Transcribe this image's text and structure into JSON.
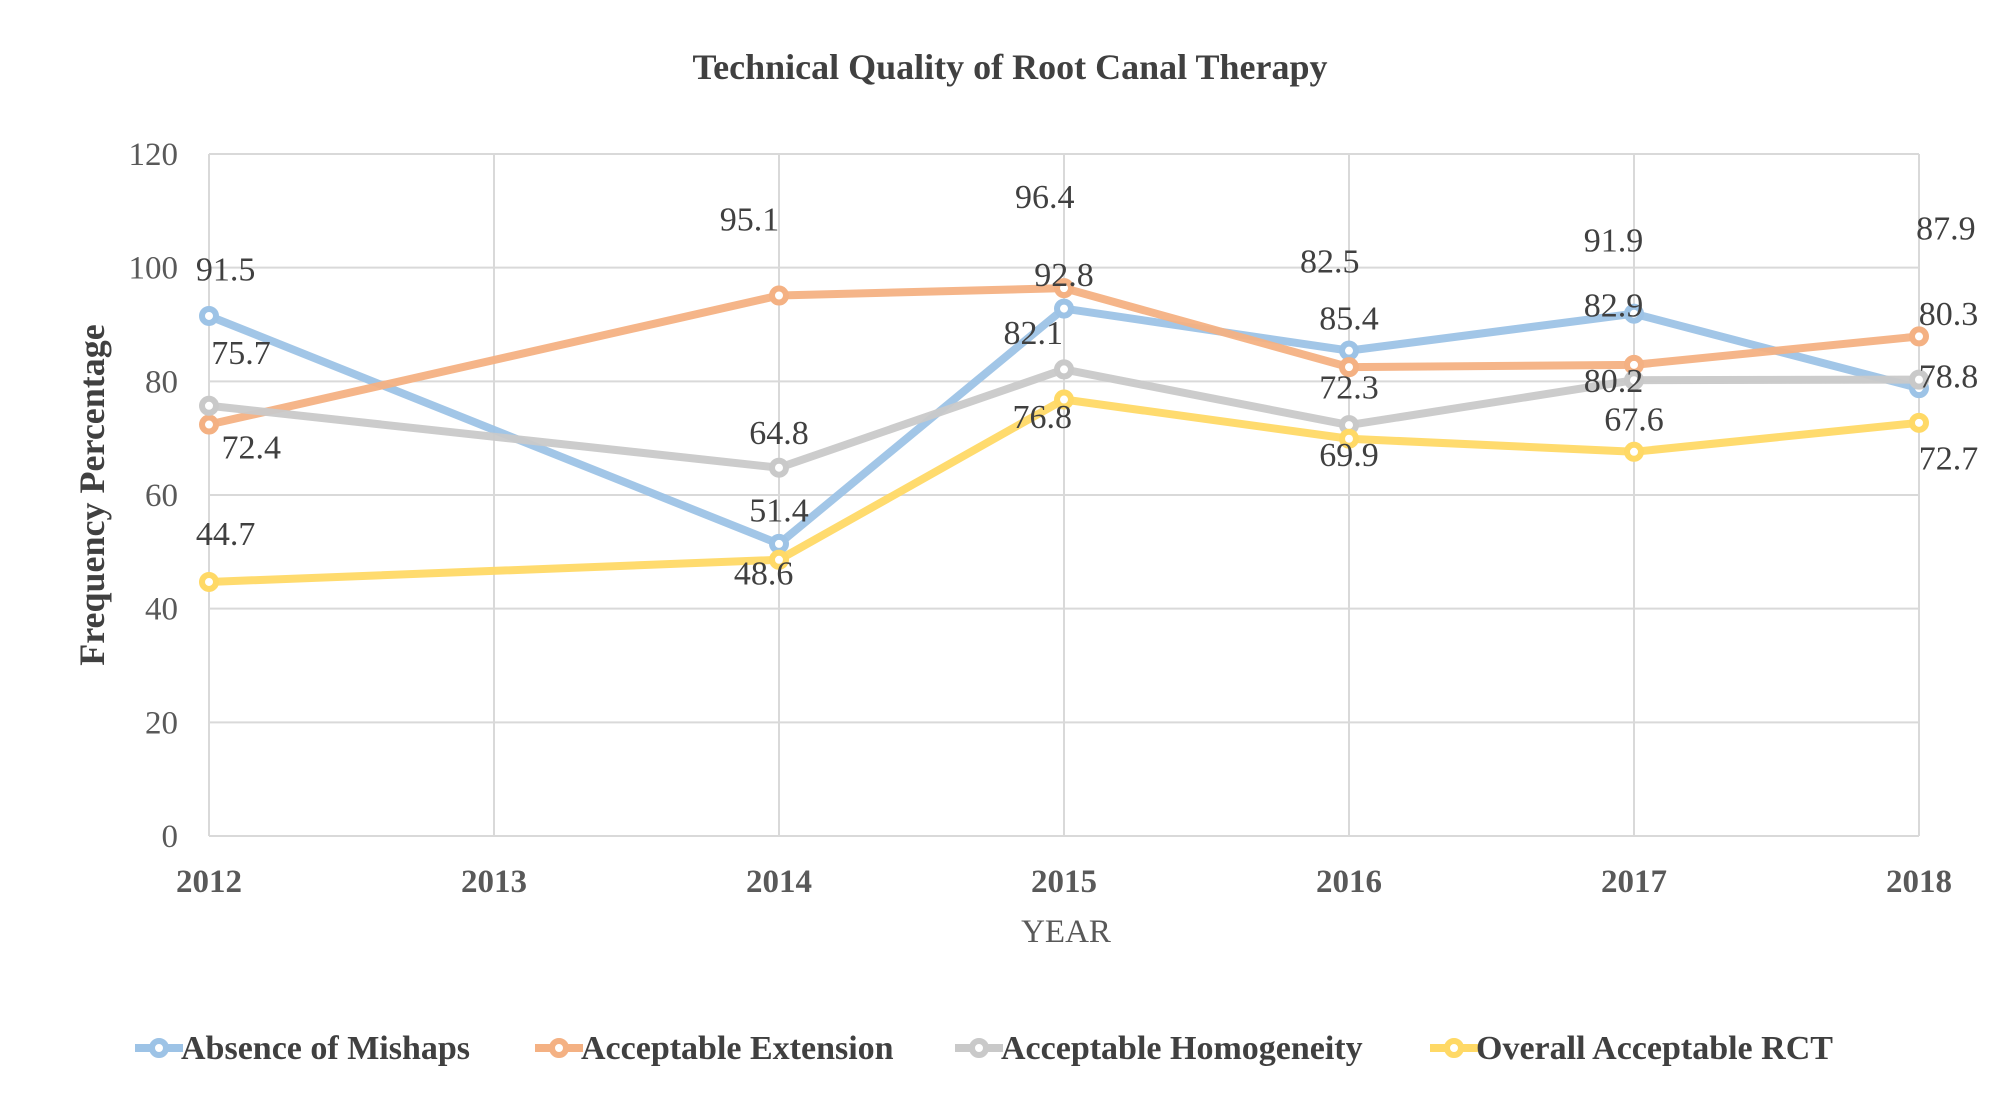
{
  "chart_data": {
    "type": "line",
    "title": "Technical Quality of Root Canal Therapy",
    "xlabel": "YEAR",
    "ylabel": "Frequency Percentage",
    "categories": [
      "2012",
      "2013",
      "2014",
      "2015",
      "2016",
      "2017",
      "2018"
    ],
    "yticks": [
      "0",
      "20",
      "40",
      "60",
      "80",
      "100",
      "120"
    ],
    "ylim": [
      0,
      120
    ],
    "grid": true,
    "legend_position": "bottom",
    "series": [
      {
        "name": "Absence of Mishaps",
        "color": "#9DC3E6",
        "values": [
          91.5,
          null,
          51.4,
          92.8,
          85.4,
          91.9,
          78.8
        ]
      },
      {
        "name": "Acceptable Extension",
        "color": "#F4B183",
        "values": [
          72.4,
          null,
          95.1,
          96.4,
          82.5,
          82.9,
          87.9
        ]
      },
      {
        "name": "Acceptable Homogeneity",
        "color": "#C9C9C9",
        "values": [
          75.7,
          null,
          64.8,
          82.1,
          72.3,
          80.2,
          80.3
        ]
      },
      {
        "name": "Overall Acceptable RCT",
        "color": "#FFD966",
        "values": [
          44.7,
          null,
          48.6,
          76.8,
          69.9,
          67.6,
          72.7
        ]
      }
    ]
  }
}
